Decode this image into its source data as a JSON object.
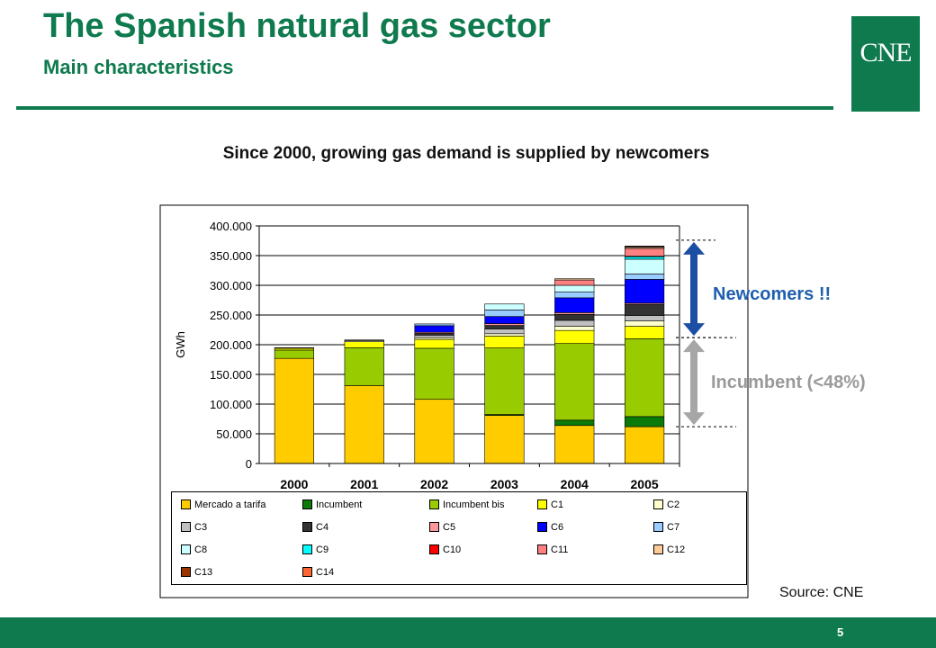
{
  "header": {
    "title": "The Spanish natural gas sector",
    "subtitle": "Main characteristics",
    "logo_text": "CNE"
  },
  "headline": "Since 2000, growing gas demand is supplied by newcomers",
  "annotations": {
    "newcomers": "Newcomers !!",
    "incumbent": "Incumbent (<48%)"
  },
  "source": "Source: CNE",
  "footer": {
    "page_number": "5"
  },
  "colors": {
    "brand_green": "#0e7a4e",
    "newcomers_arrow": "#1c4fa3",
    "incumbent_arrow": "#a6a6a6"
  },
  "chart_data": {
    "type": "bar",
    "stacked": true,
    "ylabel": "GWh",
    "ylim": [
      0,
      400000
    ],
    "yticks": [
      "0",
      "50.000",
      "100.000",
      "150.000",
      "200.000",
      "250.000",
      "300.000",
      "350.000",
      "400.000"
    ],
    "ytick_values": [
      0,
      50000,
      100000,
      150000,
      200000,
      250000,
      300000,
      350000,
      400000
    ],
    "categories": [
      "2000",
      "2001",
      "2002",
      "2003",
      "2004",
      "2005"
    ],
    "grid": true,
    "legend_position": "bottom",
    "series": [
      {
        "name": "Mercado a tarifa",
        "color": "#ffcc00",
        "values": [
          177000,
          131000,
          108000,
          81000,
          64000,
          62000
        ]
      },
      {
        "name": "Incumbent",
        "color": "#0a7a0a",
        "values": [
          0,
          0,
          0,
          1500,
          9000,
          17000
        ]
      },
      {
        "name": "Incumbent bis",
        "color": "#99cc00",
        "values": [
          14000,
          64000,
          86000,
          112000,
          129000,
          131000
        ]
      },
      {
        "name": "C1",
        "color": "#ffff00",
        "values": [
          3000,
          10000,
          15000,
          20000,
          22000,
          21000
        ]
      },
      {
        "name": "C2",
        "color": "#ffffcc",
        "values": [
          1000,
          2000,
          3000,
          4000,
          7000,
          9000
        ]
      },
      {
        "name": "C3",
        "color": "#c0c0c0",
        "values": [
          0,
          1000,
          4000,
          8000,
          10000,
          9000
        ]
      },
      {
        "name": "C4",
        "color": "#333333",
        "values": [
          0,
          0,
          3000,
          6000,
          10000,
          19000
        ]
      },
      {
        "name": "C5",
        "color": "#ff9999",
        "values": [
          0,
          0,
          2000,
          3000,
          3000,
          2000
        ]
      },
      {
        "name": "C6",
        "color": "#0000ff",
        "values": [
          0,
          0,
          11000,
          12000,
          25000,
          40000
        ]
      },
      {
        "name": "C7",
        "color": "#99ccff",
        "values": [
          0,
          0,
          3000,
          11000,
          10000,
          9000
        ]
      },
      {
        "name": "C8",
        "color": "#ccffff",
        "values": [
          0,
          0,
          0,
          10000,
          11000,
          25000
        ]
      },
      {
        "name": "C9",
        "color": "#00ffff",
        "values": [
          0,
          0,
          0,
          0,
          0,
          4000
        ]
      },
      {
        "name": "C10",
        "color": "#ff0000",
        "values": [
          0,
          0,
          0,
          0,
          0,
          1000
        ]
      },
      {
        "name": "C11",
        "color": "#ff8080",
        "values": [
          0,
          0,
          0,
          0,
          9000,
          13000
        ]
      },
      {
        "name": "C12",
        "color": "#ffcc99",
        "values": [
          0,
          0,
          0,
          0,
          2000,
          2000
        ]
      },
      {
        "name": "C13",
        "color": "#993300",
        "values": [
          0,
          0,
          0,
          0,
          0,
          1000
        ]
      },
      {
        "name": "C14",
        "color": "#ff6633",
        "values": [
          0,
          0,
          0,
          0,
          0,
          1000
        ]
      }
    ],
    "brackets": [
      {
        "label": "Newcomers !!",
        "from": 212000,
        "to": 376000
      },
      {
        "label": "Incumbent (<48%)",
        "from": 62000,
        "to": 212000
      }
    ]
  }
}
